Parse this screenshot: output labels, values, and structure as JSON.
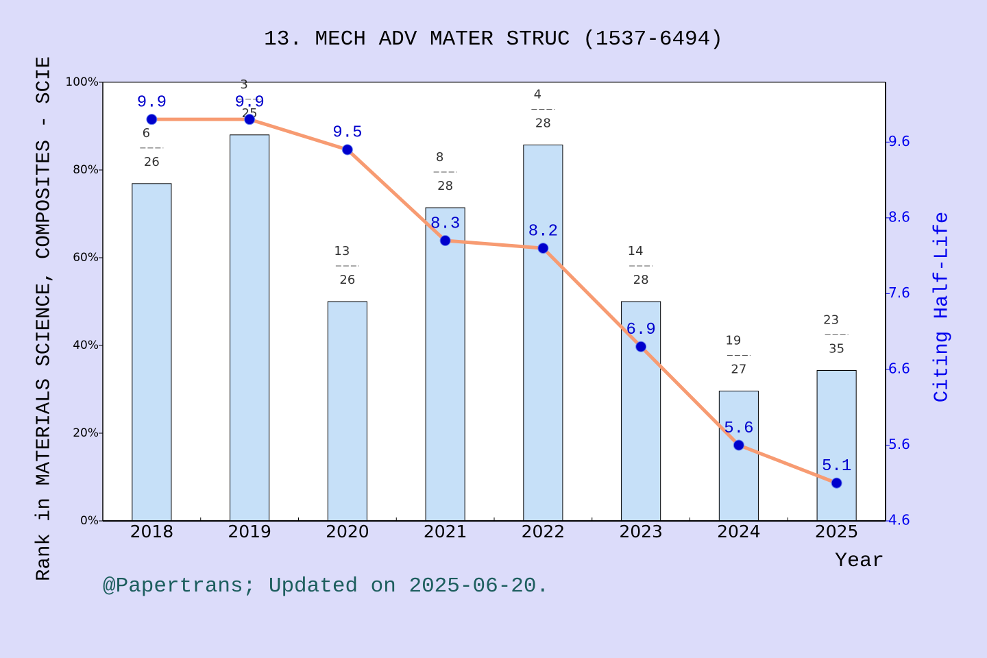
{
  "chart_data": {
    "type": "bar-line",
    "title": "13. MECH ADV MATER STRUC (1537-6494)",
    "x_label": "Year",
    "y_label": "Rank in MATERIALS SCIENCE, COMPOSITES - SCIE",
    "y2_label": "Citing Half-Life",
    "footer": "@Papertrans; Updated on 2025-06-20.",
    "categories": [
      "2018",
      "2019",
      "2020",
      "2021",
      "2022",
      "2023",
      "2024",
      "2025"
    ],
    "series": [
      {
        "type": "bar",
        "color": "#c6e0f8",
        "values": [
          76.9,
          88.0,
          50.0,
          71.4,
          85.7,
          50.0,
          29.6,
          34.3
        ]
      },
      {
        "type": "line",
        "axis": "y2",
        "color": "#f79b72",
        "marker_color": "#0000cc",
        "values": [
          9.9,
          9.9,
          9.5,
          8.3,
          8.2,
          6.9,
          5.6,
          5.1
        ]
      }
    ],
    "rank_labels": [
      {
        "rank": "6",
        "total": "26"
      },
      {
        "rank": "3",
        "total": "25"
      },
      {
        "rank": "13",
        "total": "26"
      },
      {
        "rank": "8",
        "total": "28"
      },
      {
        "rank": "4",
        "total": "28"
      },
      {
        "rank": "14",
        "total": "28"
      },
      {
        "rank": "19",
        "total": "27"
      },
      {
        "rank": "23",
        "total": "35"
      }
    ],
    "ylim": [
      0,
      100
    ],
    "yticks": [
      {
        "value": 0,
        "label": "0%"
      },
      {
        "value": 20,
        "label": "20%"
      },
      {
        "value": 40,
        "label": "40%"
      },
      {
        "value": 60,
        "label": "60%"
      },
      {
        "value": 80,
        "label": "80%"
      },
      {
        "value": 100,
        "label": "100%"
      }
    ],
    "y2lim": [
      4.6,
      10.39
    ],
    "y2ticks": [
      4.6,
      5.6,
      6.6,
      7.6,
      8.6,
      9.6
    ],
    "y2_color": "#0000ee"
  }
}
